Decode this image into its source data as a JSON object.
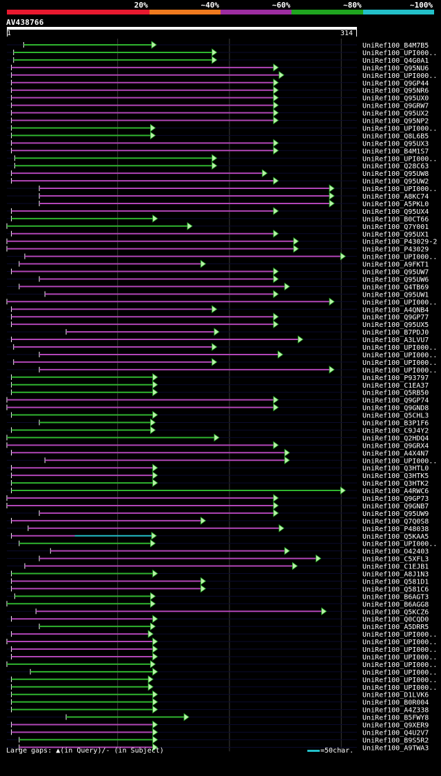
{
  "legend": {
    "segments": [
      {
        "label": "",
        "color": "#e8192f"
      },
      {
        "label": "20%",
        "color": "#e8192f"
      },
      {
        "label": "~40%",
        "color": "#f07a1e"
      },
      {
        "label": "~60%",
        "color": "#9d2da1"
      },
      {
        "label": "~80%",
        "color": "#1fa51f"
      },
      {
        "label": "~100%",
        "color": "#23c0c9"
      }
    ]
  },
  "query": {
    "id": "AV438766",
    "start_label": "1",
    "end_label": "314",
    "length": 314
  },
  "footer": {
    "gaps_text": "Large gaps: ▲(in Query)/- (in Subject)",
    "scale_text": "=50char."
  },
  "colors": {
    "green": "#2fb52f",
    "purple": "#b246b8",
    "cyan": "#23c0c9",
    "arrow_fill": "#b8f0a8",
    "row_bg": "#0b0b2e",
    "grid": "#3a3a3a"
  },
  "hits": [
    {
      "label": "UniRef100_B4M7B5",
      "color": "green",
      "start": 16,
      "end": 131
    },
    {
      "label": "UniRef100_UPI000..",
      "color": "green",
      "start": 7,
      "end": 185
    },
    {
      "label": "UniRef100_Q4G0A1",
      "color": "green",
      "start": 7,
      "end": 185
    },
    {
      "label": "UniRef100_Q95NU6",
      "color": "purple",
      "start": 5,
      "end": 240
    },
    {
      "label": "UniRef100_UPI000..",
      "color": "purple",
      "start": 5,
      "end": 245
    },
    {
      "label": "UniRef100_Q9GP44",
      "color": "purple",
      "start": 5,
      "end": 240
    },
    {
      "label": "UniRef100_Q95NR6",
      "color": "purple",
      "start": 5,
      "end": 240
    },
    {
      "label": "UniRef100_Q95UX0",
      "color": "purple",
      "start": 5,
      "end": 240
    },
    {
      "label": "UniRef100_Q9GRW7",
      "color": "purple",
      "start": 5,
      "end": 240
    },
    {
      "label": "UniRef100_Q95UX2",
      "color": "purple",
      "start": 5,
      "end": 240
    },
    {
      "label": "UniRef100_Q95NP2",
      "color": "purple",
      "start": 5,
      "end": 240
    },
    {
      "label": "UniRef100_UPI000..",
      "color": "green",
      "start": 5,
      "end": 130
    },
    {
      "label": "UniRef100_Q8L6B5",
      "color": "green",
      "start": 5,
      "end": 130
    },
    {
      "label": "UniRef100_Q95UX3",
      "color": "purple",
      "start": 5,
      "end": 240
    },
    {
      "label": "UniRef100_B4M1S7",
      "color": "purple",
      "start": 5,
      "end": 240
    },
    {
      "label": "UniRef100_UPI000..",
      "color": "green",
      "start": 8,
      "end": 185
    },
    {
      "label": "UniRef100_Q28C63",
      "color": "green",
      "start": 8,
      "end": 185
    },
    {
      "label": "UniRef100_Q95UW8",
      "color": "purple",
      "start": 5,
      "end": 230
    },
    {
      "label": "UniRef100_Q95UW2",
      "color": "purple",
      "start": 5,
      "end": 240
    },
    {
      "label": "UniRef100_UPI000..",
      "color": "purple",
      "start": 30,
      "end": 290
    },
    {
      "label": "UniRef100_A8KC74",
      "color": "purple",
      "start": 30,
      "end": 290
    },
    {
      "label": "UniRef100_A5PKL0",
      "color": "purple",
      "start": 30,
      "end": 290
    },
    {
      "label": "UniRef100_Q95UX4",
      "color": "purple",
      "start": 5,
      "end": 240
    },
    {
      "label": "UniRef100_B0CT66",
      "color": "green",
      "start": 5,
      "end": 132
    },
    {
      "label": "UniRef100_Q7Y001",
      "color": "green",
      "start": 1,
      "end": 163
    },
    {
      "label": "UniRef100_Q95UX1",
      "color": "purple",
      "start": 5,
      "end": 240
    },
    {
      "label": "UniRef100_P43029-2",
      "color": "purple",
      "start": 1,
      "end": 258
    },
    {
      "label": "UniRef100_P43029",
      "color": "purple",
      "start": 1,
      "end": 258
    },
    {
      "label": "UniRef100_UPI000..",
      "color": "purple",
      "start": 17,
      "end": 300
    },
    {
      "label": "UniRef100_A9FKT1",
      "color": "purple",
      "start": 12,
      "end": 175
    },
    {
      "label": "UniRef100_Q95UW7",
      "color": "purple",
      "start": 5,
      "end": 240
    },
    {
      "label": "UniRef100_Q95UW6",
      "color": "purple",
      "start": 30,
      "end": 240
    },
    {
      "label": "UniRef100_Q4TB69",
      "color": "purple",
      "start": 12,
      "end": 250
    },
    {
      "label": "UniRef100_Q95UW1",
      "color": "purple",
      "start": 35,
      "end": 240
    },
    {
      "label": "UniRef100_UPI000..",
      "color": "purple",
      "start": 1,
      "end": 290
    },
    {
      "label": "UniRef100_A4QNB4",
      "color": "purple",
      "start": 5,
      "end": 185
    },
    {
      "label": "UniRef100_Q9GP77",
      "color": "purple",
      "start": 5,
      "end": 240
    },
    {
      "label": "UniRef100_Q95UX5",
      "color": "purple",
      "start": 5,
      "end": 240
    },
    {
      "label": "UniRef100_B7PDJ0",
      "color": "purple",
      "start": 54,
      "end": 187
    },
    {
      "label": "UniRef100_A3LVU7",
      "color": "purple",
      "start": 5,
      "end": 262
    },
    {
      "label": "UniRef100_UPI000..",
      "color": "purple",
      "start": 7,
      "end": 185
    },
    {
      "label": "UniRef100_UPI000..",
      "color": "purple",
      "start": 30,
      "end": 244
    },
    {
      "label": "UniRef100_UPI000..",
      "color": "purple",
      "start": 7,
      "end": 185
    },
    {
      "label": "UniRef100_UPI000..",
      "color": "purple",
      "start": 30,
      "end": 290
    },
    {
      "label": "UniRef100_P93797",
      "color": "green",
      "start": 5,
      "end": 132
    },
    {
      "label": "UniRef100_C1EA37",
      "color": "green",
      "start": 5,
      "end": 132
    },
    {
      "label": "UniRef100_Q5RB50",
      "color": "green",
      "start": 5,
      "end": 132
    },
    {
      "label": "UniRef100_Q9GP74",
      "color": "purple",
      "start": 1,
      "end": 240
    },
    {
      "label": "UniRef100_Q9GND8",
      "color": "purple",
      "start": 1,
      "end": 240
    },
    {
      "label": "UniRef100_Q5CHL3",
      "color": "green",
      "start": 5,
      "end": 132
    },
    {
      "label": "UniRef100_B3P1F6",
      "color": "green",
      "start": 30,
      "end": 130
    },
    {
      "label": "UniRef100_C9J4Y2",
      "color": "green",
      "start": 5,
      "end": 130
    },
    {
      "label": "UniRef100_Q2HDQ4",
      "color": "green",
      "start": 1,
      "end": 187
    },
    {
      "label": "UniRef100_Q9GRX4",
      "color": "purple",
      "start": 1,
      "end": 240
    },
    {
      "label": "UniRef100_A4X4N7",
      "color": "purple",
      "start": 5,
      "end": 250
    },
    {
      "label": "UniRef100_UPI000..",
      "color": "purple",
      "start": 35,
      "end": 250
    },
    {
      "label": "UniRef100_Q3HTL0",
      "color": "purple",
      "start": 5,
      "end": 132
    },
    {
      "label": "UniRef100_Q3HTK5",
      "color": "purple",
      "start": 5,
      "end": 132
    },
    {
      "label": "UniRef100_Q3HTK2",
      "color": "green",
      "start": 5,
      "end": 132
    },
    {
      "label": "UniRef100_A4RWC6",
      "color": "green",
      "start": 5,
      "end": 300
    },
    {
      "label": "UniRef100_Q9GP73",
      "color": "purple",
      "start": 1,
      "end": 240
    },
    {
      "label": "UniRef100_Q9GNB7",
      "color": "purple",
      "start": 1,
      "end": 240
    },
    {
      "label": "UniRef100_Q95UW9",
      "color": "purple",
      "start": 30,
      "end": 240
    },
    {
      "label": "UniRef100_Q7Q0S8",
      "color": "purple",
      "start": 5,
      "end": 175
    },
    {
      "label": "UniRef100_P48038",
      "color": "purple",
      "start": 20,
      "end": 245
    },
    {
      "label": "UniRef100_Q5KAA5",
      "color": "mixed",
      "start": 5,
      "end": 131
    },
    {
      "label": "UniRef100_UPI000..",
      "color": "green",
      "start": 12,
      "end": 130
    },
    {
      "label": "UniRef100_O42403",
      "color": "purple",
      "start": 40,
      "end": 250
    },
    {
      "label": "UniRef100_C5XFL3",
      "color": "purple",
      "start": 30,
      "end": 278
    },
    {
      "label": "UniRef100_C1EJB1",
      "color": "purple",
      "start": 17,
      "end": 257
    },
    {
      "label": "UniRef100_A8J1N3",
      "color": "green",
      "start": 5,
      "end": 132
    },
    {
      "label": "UniRef100_Q581D1",
      "color": "purple",
      "start": 5,
      "end": 175
    },
    {
      "label": "UniRef100_Q581C6",
      "color": "purple",
      "start": 5,
      "end": 175
    },
    {
      "label": "UniRef100_B6AGT3",
      "color": "green",
      "start": 8,
      "end": 130
    },
    {
      "label": "UniRef100_B6AGG8",
      "color": "green",
      "start": 1,
      "end": 130
    },
    {
      "label": "UniRef100_Q5KCZ6",
      "color": "purple",
      "start": 27,
      "end": 283
    },
    {
      "label": "UniRef100_Q0CQD0",
      "color": "purple",
      "start": 5,
      "end": 132
    },
    {
      "label": "UniRef100_A5DRR5",
      "color": "green",
      "start": 30,
      "end": 130
    },
    {
      "label": "UniRef100_UPI000..",
      "color": "purple",
      "start": 5,
      "end": 128
    },
    {
      "label": "UniRef100_UPI000..",
      "color": "purple",
      "start": 1,
      "end": 132
    },
    {
      "label": "UniRef100_UPI000..",
      "color": "purple",
      "start": 5,
      "end": 132
    },
    {
      "label": "UniRef100_UPI000..",
      "color": "purple",
      "start": 5,
      "end": 132
    },
    {
      "label": "UniRef100_UPI000..",
      "color": "green",
      "start": 1,
      "end": 130
    },
    {
      "label": "UniRef100_UPI000..",
      "color": "green",
      "start": 22,
      "end": 132
    },
    {
      "label": "UniRef100_UPI000..",
      "color": "green",
      "start": 5,
      "end": 128
    },
    {
      "label": "UniRef100_UPI000..",
      "color": "green",
      "start": 5,
      "end": 128
    },
    {
      "label": "UniRef100_D1LVK6",
      "color": "green",
      "start": 5,
      "end": 132
    },
    {
      "label": "UniRef100_B0R004",
      "color": "green",
      "start": 5,
      "end": 132
    },
    {
      "label": "UniRef100_A4Z338",
      "color": "green",
      "start": 5,
      "end": 132
    },
    {
      "label": "UniRef100_B5FWY8",
      "color": "green",
      "start": 54,
      "end": 160
    },
    {
      "label": "UniRef100_Q9XER9",
      "color": "purple",
      "start": 5,
      "end": 132
    },
    {
      "label": "UniRef100_Q4U2V7",
      "color": "purple",
      "start": 5,
      "end": 132
    },
    {
      "label": "UniRef100_B9S5R2",
      "color": "green",
      "start": 12,
      "end": 132
    },
    {
      "label": "UniRef100_A9TWA3",
      "color": "purple",
      "start": 12,
      "end": 132
    }
  ]
}
